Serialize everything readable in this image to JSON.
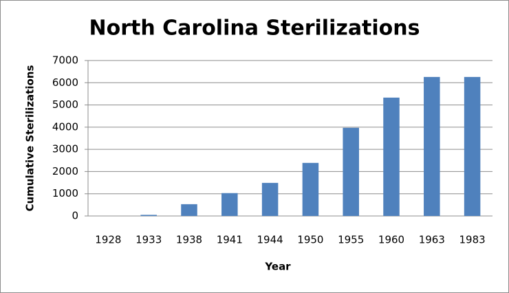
{
  "chart_data": {
    "type": "bar",
    "title": "North Carolina Sterilizations",
    "x_label": "Year",
    "y_label": "Cumulative Sterilizations",
    "categories": [
      "1928",
      "1933",
      "1938",
      "1941",
      "1944",
      "1950",
      "1955",
      "1960",
      "1963",
      "1983"
    ],
    "values": [
      0,
      50,
      530,
      1030,
      1490,
      2390,
      3970,
      5330,
      6260,
      6260
    ],
    "color": "#4f81bd",
    "ylim": [
      0,
      7000
    ],
    "yticks": [
      0,
      1000,
      2000,
      3000,
      4000,
      5000,
      6000,
      7000
    ],
    "grid": true
  }
}
